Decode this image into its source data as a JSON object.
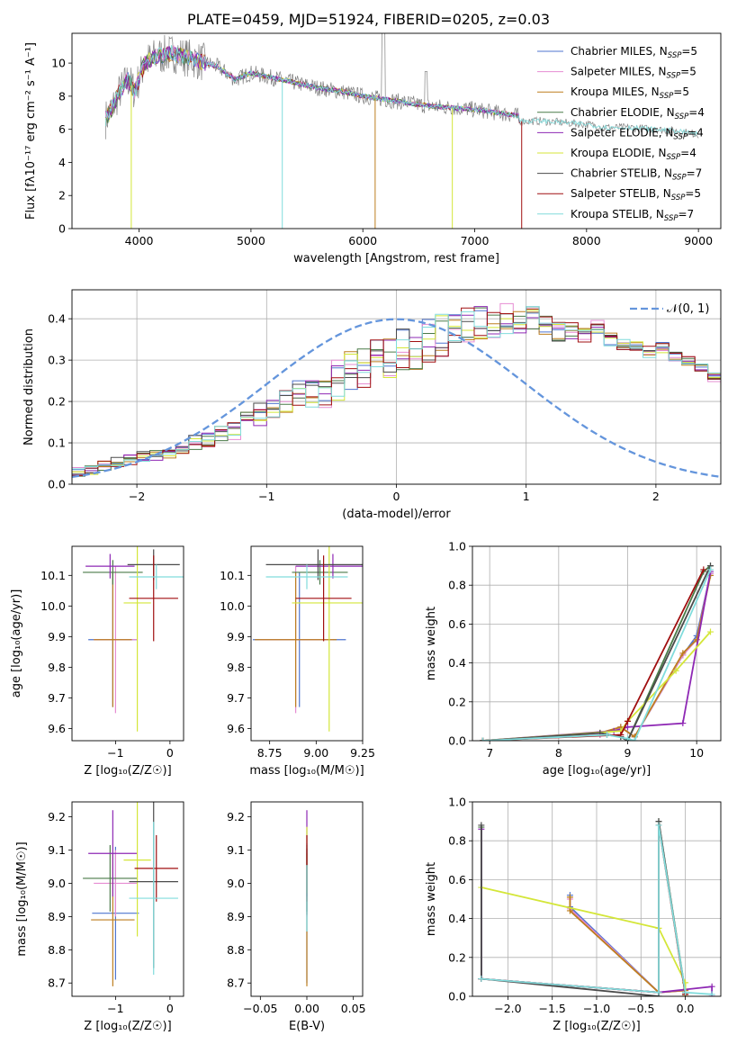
{
  "figure": {
    "title": "PLATE=0459, MJD=51924, FIBERID=0205, z=0.03"
  },
  "legend_names": [
    "Chabrier MILES",
    "Salpeter MILES",
    "Kroupa MILES",
    "Chabrier ELODIE",
    "Salpeter ELODIE",
    "Kroupa ELODIE",
    "Chabrier STELIB",
    "Salpeter STELIB",
    "Kroupa STELIB"
  ],
  "legend_nssp": [
    5,
    5,
    5,
    4,
    4,
    4,
    7,
    5,
    7
  ],
  "colors": [
    "#4f75cf",
    "#e68cd2",
    "#bd7e1f",
    "#4a7a48",
    "#8e28b4",
    "#d4e639",
    "#4b4b4b",
    "#a00f10",
    "#80dcdc"
  ],
  "chart_data": [
    {
      "id": "spectrum",
      "type": "line",
      "xlabel": "wavelength [Angstrom, rest frame]",
      "ylabel": "Flux [fλ10⁻¹⁷ erg cm⁻² s⁻¹ A⁻¹]",
      "xlim": [
        3400,
        9200
      ],
      "ylim": [
        0,
        11.8
      ],
      "xticks": [
        4000,
        5000,
        6000,
        7000,
        8000,
        9000
      ],
      "yticks": [
        0,
        2,
        4,
        6,
        8,
        10
      ],
      "grid": false,
      "legend_position": "top-right",
      "series_model_x": [
        3700,
        3760,
        3820,
        3900,
        3960,
        4050,
        4150,
        4300,
        4500,
        4700,
        4860,
        5000,
        5200,
        5400,
        5600,
        5800,
        6000,
        6200,
        6400,
        6600,
        6800,
        7000,
        7200,
        7400
      ],
      "series_model_y": [
        6.6,
        7.3,
        8.2,
        9.0,
        8.3,
        10.0,
        10.4,
        10.6,
        10.2,
        9.8,
        9.0,
        9.4,
        9.1,
        8.8,
        8.5,
        8.3,
        8.0,
        7.8,
        7.6,
        7.4,
        7.3,
        7.2,
        7.0,
        6.8
      ],
      "stelib_extension_x": [
        7400,
        7600,
        7800,
        8000,
        8200,
        8400,
        8600,
        8800,
        9000
      ],
      "stelib_extension_y": [
        6.5,
        6.5,
        6.4,
        6.3,
        6.1,
        6.1,
        6.0,
        5.9,
        5.7
      ]
    },
    {
      "id": "residuals",
      "type": "histogram",
      "xlabel": "(data-model)/error",
      "ylabel": "Normed distribution",
      "xlim": [
        -2.5,
        2.5
      ],
      "ylim": [
        0,
        0.47
      ],
      "xticks": [
        -2,
        -1,
        0,
        1,
        2
      ],
      "yticks": [
        0,
        0.1,
        0.2,
        0.3,
        0.4
      ],
      "grid": true,
      "legend_position": "top-right",
      "curve_label": "𝒩(0, 1)",
      "curve_color": "#6495dc",
      "bin_width": 0.1,
      "bin_start": -2.5,
      "baseline": [
        0.03,
        0.035,
        0.045,
        0.055,
        0.06,
        0.065,
        0.07,
        0.075,
        0.09,
        0.1,
        0.11,
        0.12,
        0.13,
        0.15,
        0.17,
        0.17,
        0.19,
        0.21,
        0.21,
        0.23,
        0.25,
        0.27,
        0.28,
        0.3,
        0.31,
        0.32,
        0.33,
        0.35,
        0.36,
        0.37,
        0.38,
        0.39,
        0.39,
        0.4,
        0.39,
        0.4,
        0.38,
        0.37,
        0.37,
        0.36,
        0.38,
        0.35,
        0.34,
        0.33,
        0.32,
        0.33,
        0.31,
        0.3,
        0.28,
        0.26,
        0.24,
        0.22,
        0.2,
        0.19,
        0.18,
        0.17,
        0.15,
        0.14,
        0.12,
        0.12,
        0.11,
        0.1,
        0.09,
        0.08,
        0.07,
        0.065,
        0.06,
        0.055,
        0.05,
        0.045,
        0.04,
        0.035,
        0.035,
        0.03,
        0.03,
        0.03,
        0.025,
        0.025,
        0.02,
        0.02
      ]
    },
    {
      "id": "age-vs-z",
      "type": "errorbar",
      "xlabel": "Z [log₁₀(Z/Z☉)]",
      "ylabel": "age  [log₁₀(age/yr)]",
      "xlim": [
        -1.8,
        0.25
      ],
      "ylim": [
        9.56,
        10.195
      ],
      "xticks": [
        -1,
        0
      ],
      "yticks": [
        9.6,
        9.7,
        9.8,
        9.9,
        10.0,
        10.1
      ],
      "points": [
        {
          "x": -1.05,
          "y": 9.89,
          "xerr": 0.45,
          "yerr": 0.22
        },
        {
          "x": -1.0,
          "y": 9.89,
          "xerr": 0.4,
          "yerr": 0.24
        },
        {
          "x": -1.05,
          "y": 9.89,
          "xerr": 0.35,
          "yerr": 0.22
        },
        {
          "x": -1.05,
          "y": 10.11,
          "xerr": 0.55,
          "yerr": 0.04
        },
        {
          "x": -1.1,
          "y": 10.13,
          "xerr": 0.45,
          "yerr": 0.04
        },
        {
          "x": -0.6,
          "y": 10.01,
          "xerr": 0.25,
          "yerr": 0.42
        },
        {
          "x": -0.3,
          "y": 10.135,
          "xerr": 0.48,
          "yerr": 0.05
        },
        {
          "x": -0.3,
          "y": 10.025,
          "xerr": 0.45,
          "yerr": 0.14
        },
        {
          "x": -0.25,
          "y": 10.095,
          "xerr": 0.5,
          "yerr": 0.04
        }
      ]
    },
    {
      "id": "age-vs-mass",
      "type": "errorbar",
      "xlabel": "mass [log₁₀(M/M☉)]",
      "ylabel": "",
      "xlim": [
        8.65,
        9.25
      ],
      "ylim": [
        9.56,
        10.195
      ],
      "xticks": [
        8.75,
        9.0,
        9.25
      ],
      "yticks": [
        9.6,
        9.7,
        9.8,
        9.9,
        10.0,
        10.1
      ],
      "points": [
        {
          "x": 8.91,
          "y": 9.89,
          "xerr": 0.25,
          "yerr": 0.22
        },
        {
          "x": 8.89,
          "y": 9.89,
          "xerr": 0.2,
          "yerr": 0.24
        },
        {
          "x": 8.89,
          "y": 9.89,
          "xerr": 0.22,
          "yerr": 0.22
        },
        {
          "x": 9.02,
          "y": 10.11,
          "xerr": 0.15,
          "yerr": 0.04
        },
        {
          "x": 9.09,
          "y": 10.13,
          "xerr": 0.2,
          "yerr": 0.04
        },
        {
          "x": 9.07,
          "y": 10.01,
          "xerr": 0.2,
          "yerr": 0.42
        },
        {
          "x": 9.01,
          "y": 10.135,
          "xerr": 0.28,
          "yerr": 0.05
        },
        {
          "x": 9.04,
          "y": 10.025,
          "xerr": 0.15,
          "yerr": 0.14
        },
        {
          "x": 8.95,
          "y": 10.095,
          "xerr": 0.22,
          "yerr": 0.04
        }
      ]
    },
    {
      "id": "weight-vs-age",
      "type": "line",
      "xlabel": "age  [log₁₀(age/yr)]",
      "ylabel": "mass weight",
      "xlim": [
        6.75,
        10.35
      ],
      "ylim": [
        0,
        1.0
      ],
      "xticks": [
        7,
        8,
        9,
        10
      ],
      "yticks": [
        0,
        0.2,
        0.4,
        0.6,
        0.8,
        1.0
      ],
      "grid": true,
      "series": [
        {
          "x": [
            6.9,
            8.6,
            8.9,
            9.1,
            9.8,
            10.0,
            10.2
          ],
          "y": [
            0.0,
            0.03,
            0.07,
            0.02,
            0.44,
            0.54,
            0.86
          ]
        },
        {
          "x": [
            6.9,
            8.6,
            8.9,
            9.1,
            9.8,
            10.0,
            10.2
          ],
          "y": [
            0.0,
            0.03,
            0.07,
            0.02,
            0.44,
            0.52,
            0.86
          ]
        },
        {
          "x": [
            6.9,
            8.6,
            8.9,
            9.1,
            9.8,
            10.0,
            10.2
          ],
          "y": [
            0.0,
            0.04,
            0.07,
            0.02,
            0.45,
            0.52,
            0.85
          ]
        },
        {
          "x": [
            6.9,
            8.7,
            8.9,
            9.0,
            10.1,
            10.2
          ],
          "y": [
            0.0,
            0.03,
            0.02,
            0.0,
            0.87,
            0.9
          ]
        },
        {
          "x": [
            6.9,
            8.8,
            9.0,
            9.8,
            10.2
          ],
          "y": [
            0.0,
            0.05,
            0.07,
            0.09,
            0.87
          ]
        },
        {
          "x": [
            6.9,
            8.9,
            9.0,
            9.7,
            10.2
          ],
          "y": [
            0.0,
            0.05,
            0.1,
            0.36,
            0.56
          ]
        },
        {
          "x": [
            6.9,
            8.6,
            8.9,
            9.0,
            10.2
          ],
          "y": [
            0.0,
            0.04,
            0.02,
            0.0,
            0.9
          ]
        },
        {
          "x": [
            6.9,
            8.9,
            9.0,
            10.1
          ],
          "y": [
            0.0,
            0.03,
            0.1,
            0.88
          ]
        },
        {
          "x": [
            6.9,
            8.7,
            9.0,
            9.1,
            10.2
          ],
          "y": [
            0.0,
            0.03,
            0.01,
            0.0,
            0.88
          ]
        }
      ]
    },
    {
      "id": "mass-vs-z",
      "type": "errorbar",
      "xlabel": "Z [log₁₀(Z/Z☉)]",
      "ylabel": "mass [log₁₀(M/M☉)]",
      "xlim": [
        -1.8,
        0.25
      ],
      "ylim": [
        8.66,
        9.245
      ],
      "xticks": [
        -1,
        0
      ],
      "yticks": [
        8.7,
        8.8,
        8.9,
        9.0,
        9.1,
        9.2
      ],
      "points": [
        {
          "x": -1.0,
          "y": 8.91,
          "xerr": 0.43,
          "yerr": 0.2
        },
        {
          "x": -1.0,
          "y": 9.0,
          "xerr": 0.4,
          "yerr": 0.1
        },
        {
          "x": -1.05,
          "y": 8.89,
          "xerr": 0.4,
          "yerr": 0.2
        },
        {
          "x": -1.1,
          "y": 9.015,
          "xerr": 0.5,
          "yerr": 0.1
        },
        {
          "x": -1.05,
          "y": 9.09,
          "xerr": 0.45,
          "yerr": 0.13
        },
        {
          "x": -0.6,
          "y": 9.07,
          "xerr": 0.25,
          "yerr": 0.23
        },
        {
          "x": -0.3,
          "y": 9.005,
          "xerr": 0.45,
          "yerr": 0.26
        },
        {
          "x": -0.25,
          "y": 9.045,
          "xerr": 0.4,
          "yerr": 0.1
        },
        {
          "x": -0.3,
          "y": 8.955,
          "xerr": 0.45,
          "yerr": 0.23
        }
      ]
    },
    {
      "id": "mass-vs-ebv",
      "type": "errorbar",
      "xlabel": "E(B-V)",
      "ylabel": "",
      "xlim": [
        -0.06,
        0.06
      ],
      "ylim": [
        8.66,
        9.245
      ],
      "xticks": [
        -0.05,
        0.0,
        0.05
      ],
      "yticks": [
        8.7,
        8.8,
        8.9,
        9.0,
        9.1,
        9.2
      ],
      "points": [
        {
          "x": 0.0,
          "y": 8.91,
          "xerr": 0.0,
          "yerr": 0.21
        },
        {
          "x": 0.0,
          "y": 9.0,
          "xerr": 0.0,
          "yerr": 0.1
        },
        {
          "x": 0.0,
          "y": 8.89,
          "xerr": 0.0,
          "yerr": 0.2
        },
        {
          "x": 0.0,
          "y": 9.015,
          "xerr": 0.0,
          "yerr": 0.1
        },
        {
          "x": 0.0,
          "y": 9.09,
          "xerr": 0.0,
          "yerr": 0.13
        },
        {
          "x": 0.0,
          "y": 9.07,
          "xerr": 0.0,
          "yerr": 0.1
        },
        {
          "x": 0.0,
          "y": 9.005,
          "xerr": 0.0,
          "yerr": 0.1
        },
        {
          "x": 0.0,
          "y": 9.045,
          "xerr": 0.0,
          "yerr": 0.1
        },
        {
          "x": 0.0,
          "y": 8.955,
          "xerr": 0.0,
          "yerr": 0.1
        }
      ]
    },
    {
      "id": "weight-vs-z",
      "type": "line",
      "xlabel": "Z [log₁₀(Z/Z☉)]",
      "ylabel": "mass weight",
      "xlim": [
        -2.4,
        0.4
      ],
      "ylim": [
        0,
        1.0
      ],
      "xticks": [
        -2.0,
        -1.5,
        -1.0,
        -0.5,
        0.0
      ],
      "yticks": [
        0,
        0.2,
        0.4,
        0.6,
        0.8,
        1.0
      ],
      "grid": true,
      "series": [
        {
          "x": [
            -1.3,
            -1.3,
            -0.3,
            0.0,
            0.0
          ],
          "y": [
            0.52,
            0.46,
            0.02,
            0.03,
            0.0
          ]
        },
        {
          "x": [
            -1.3,
            -1.3,
            -0.3,
            0.0,
            0.0
          ],
          "y": [
            0.5,
            0.45,
            0.02,
            0.03,
            0.0
          ]
        },
        {
          "x": [
            -1.3,
            -1.3,
            -0.3,
            0.0,
            0.0
          ],
          "y": [
            0.51,
            0.44,
            0.02,
            0.03,
            0.0
          ]
        },
        {
          "x": [
            -2.3,
            -2.3,
            -0.3,
            -0.3,
            0.0
          ],
          "y": [
            0.87,
            0.09,
            0.02,
            0.9,
            0.02
          ]
        },
        {
          "x": [
            -2.3,
            -2.3,
            -0.3,
            0.3,
            0.3
          ],
          "y": [
            0.86,
            0.09,
            0.02,
            0.05,
            0.0
          ]
        },
        {
          "x": [
            -2.3,
            -0.3,
            0.0,
            0.0
          ],
          "y": [
            0.56,
            0.35,
            0.07,
            0.0
          ]
        },
        {
          "x": [
            -2.3,
            -2.3,
            -0.3,
            -0.3,
            0.0
          ],
          "y": [
            0.88,
            0.09,
            0.0,
            0.9,
            0.01
          ]
        },
        {
          "x": [
            -2.3,
            -0.3,
            -0.3,
            0.0
          ],
          "y": [
            0.09,
            0.02,
            0.88,
            0.01
          ]
        },
        {
          "x": [
            -2.3,
            -0.3,
            -0.3,
            0.0,
            0.3
          ],
          "y": [
            0.09,
            0.02,
            0.88,
            0.02,
            0.01
          ]
        }
      ]
    }
  ]
}
